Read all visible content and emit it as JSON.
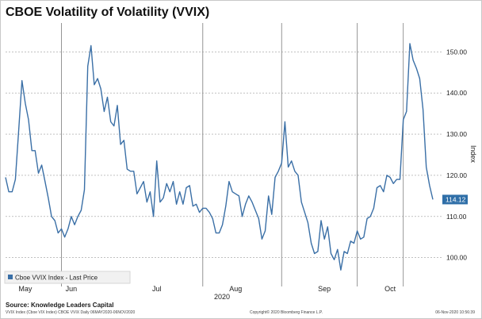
{
  "title": "CBOE Volatility of Volatility (VVIX)",
  "chart_data": {
    "type": "line",
    "title": "CBOE Volatility of Volatility (VVIX)",
    "xlabel": "2020",
    "ylabel": "Index",
    "x_tick_labels": [
      "May",
      "Jun",
      "Jul",
      "Aug",
      "Sep",
      "Oct"
    ],
    "y_ticks": [
      100,
      110,
      120,
      130,
      140,
      150
    ],
    "y_tick_labels": [
      "100.00",
      "110.00",
      "120.00",
      "130.00",
      "140.00",
      "150.00"
    ],
    "ylim": [
      93,
      157
    ],
    "grid": true,
    "legend_position": "bottom-left",
    "last_value_label": "114.12",
    "series": [
      {
        "name": "Cboe VVIX Index - Last Price",
        "color": "#3a6fa6",
        "values": [
          119.5,
          116,
          116,
          119,
          131,
          143,
          137.5,
          133.5,
          126,
          126,
          120.5,
          122.5,
          118.5,
          114.5,
          110,
          109,
          106,
          107,
          105,
          107,
          110,
          108,
          110,
          111.5,
          116.5,
          146.5,
          151.5,
          142,
          143.5,
          141,
          135.5,
          139,
          133,
          132,
          137,
          127.5,
          128.5,
          121.5,
          121,
          121,
          115.5,
          117,
          118.5,
          113.5,
          116,
          110,
          123.5,
          113.5,
          114.5,
          118,
          116,
          118.5,
          113,
          116,
          113,
          117,
          117.5,
          112.5,
          113,
          111,
          112,
          112,
          111,
          109.5,
          106,
          106,
          108,
          112.5,
          118.5,
          116,
          115.5,
          115,
          110,
          113,
          115,
          113.5,
          111.5,
          109.5,
          104.5,
          106.5,
          115,
          110.5,
          119.5,
          121,
          123,
          133,
          122,
          123.5,
          121,
          120,
          113.5,
          111,
          108.5,
          103.5,
          101,
          101.5,
          109,
          104.5,
          107.5,
          101,
          99.5,
          102,
          97,
          101.5,
          101,
          104,
          103.5,
          106.5,
          104.5,
          105,
          109.5,
          110,
          112,
          117,
          117.5,
          116,
          120,
          119.5,
          118,
          119,
          119,
          133.5,
          135.5,
          152,
          148,
          146,
          143.5,
          136,
          122,
          117.5,
          114.12
        ]
      }
    ]
  },
  "footer": {
    "source": "Source: Knowledge Leaders Capital",
    "left_note": "VVIX Index (Cboe VIX Index) CBOE VVIX  Daily 06MAY2020-06NOV2020",
    "copyright": "Copyright© 2020 Bloomberg Finance L.P.",
    "timestamp": "06-Nov-2020 10:56:39"
  }
}
